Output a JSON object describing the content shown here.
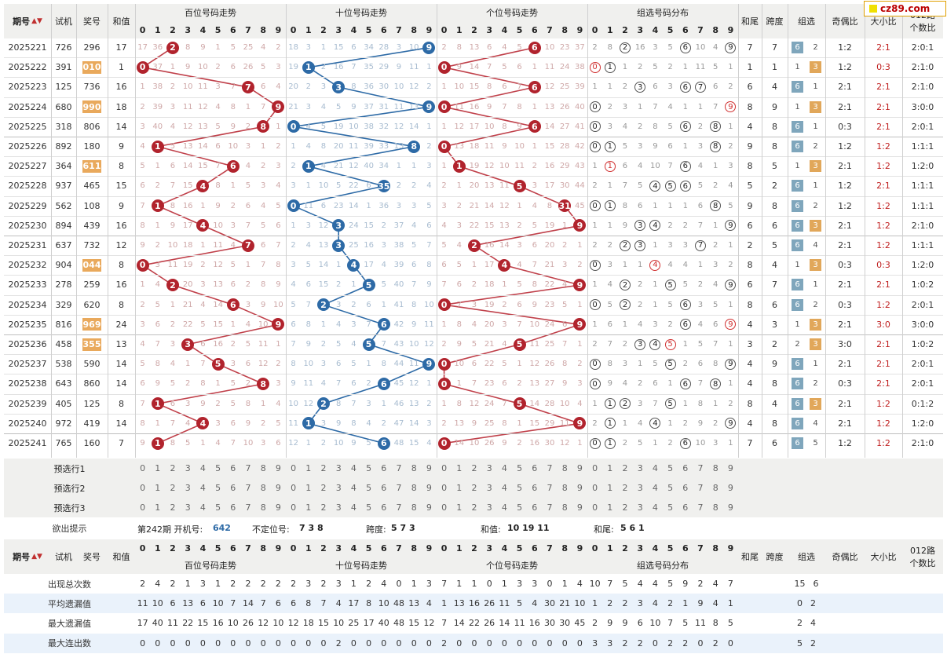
{
  "logo": "cz89.com",
  "header": {
    "period": "期号",
    "sort_icon": "sort-icon",
    "trial": "试机",
    "prize": "奖号",
    "sum": "和值",
    "hundreds": "百位号码走势",
    "tens": "十位号码走势",
    "units": "个位号码走势",
    "group": "组选号码分布",
    "tail": "和尾",
    "span": "跨度",
    "group_sel": "组选",
    "odd_even": "奇偶比",
    "big_small": "大小比",
    "road012_a": "012路",
    "road012_b": "个数比",
    "digits": [
      "0",
      "1",
      "2",
      "3",
      "4",
      "5",
      "6",
      "7",
      "8",
      "9"
    ]
  },
  "rows": [
    {
      "p": "2025221",
      "t": "726",
      "a": "296",
      "s": "17",
      "h": "17 36 2 8 9 1 5 25 4 2",
      "d": "18 3 1 15 6 34 28 3 10 9",
      "u": "2 8 13 6 4 5 6 10 23 37",
      "g": "2 8 2 16 3 5 6 10 4 9",
      "gc": [
        2,
        6,
        9
      ],
      "tail": "7",
      "span": "7",
      "g6": "6",
      "g3": "2",
      "oe": "1:2",
      "bs": "2:1",
      "road": "2:0:1",
      "hs": false
    },
    {
      "p": "2025222",
      "t": "391",
      "a": "010",
      "s": "1",
      "h": "0 37 1 9 10 2 6 26 5 3",
      "d": "19 1 2 16 7 35 29 9 11 1",
      "u": "0 9 14 7 5 6 1 11 24 38",
      "g": "0 1 1 2 5 2 1 11 5 1",
      "gc": [
        0,
        1
      ],
      "gr": [
        0
      ],
      "tail": "1",
      "span": "1",
      "g6": "1",
      "g3": "3",
      "oe": "1:2",
      "bs": "0:3",
      "road": "2:1:0",
      "hs": true
    },
    {
      "p": "2025223",
      "t": "125",
      "a": "736",
      "s": "16",
      "h": "1 38 2 10 11 3 7 7 6 4",
      "d": "20 2 3 3 8 36 30 10 12 2",
      "u": "1 10 15 8 6 7 6 12 25 39",
      "g": "1 1 2 3 6 3 6 7 6 2",
      "gc": [
        3,
        6,
        7
      ],
      "tail": "6",
      "span": "4",
      "g6": "6",
      "g3": "1",
      "oe": "2:1",
      "bs": "2:1",
      "road": "2:1:0",
      "hs": false
    },
    {
      "p": "2025224",
      "t": "680",
      "a": "990",
      "s": "18",
      "h": "2 39 3 11 12 4 8 1 7 9",
      "d": "21 3 4 5 9 37 31 11 13 9",
      "u": "0 11 16 9 7 8 1 13 26 40",
      "g": "0 2 3 1 7 4 1 1 7 9",
      "gc": [
        0,
        9
      ],
      "gr": [
        9
      ],
      "tail": "8",
      "span": "9",
      "g6": "1",
      "g3": "3",
      "oe": "2:1",
      "bs": "2:1",
      "road": "3:0:0",
      "hs": true
    },
    {
      "p": "2025225",
      "t": "318",
      "a": "806",
      "s": "14",
      "h": "3 40 4 12 13 5 9 2 8 1",
      "d": "0 4 5 19 10 38 32 12 14 1",
      "u": "1 12 17 10 8 9 6 14 27 41",
      "g": "0 3 4 2 8 5 6 2 8 1",
      "gc": [
        0,
        6,
        8
      ],
      "tail": "4",
      "span": "8",
      "g6": "6",
      "g3": "1",
      "oe": "0:3",
      "bs": "2:1",
      "road": "2:0:1",
      "hs": false
    },
    {
      "p": "2025226",
      "t": "892",
      "a": "180",
      "s": "9",
      "h": "4 1 5 13 14 6 10 3 1 2",
      "d": "1 4 8 20 11 39 33 13 8 2",
      "u": "0 13 18 11 9 10 1 15 28 42",
      "g": "0 1 5 3 9 6 1 3 8 2",
      "gc": [
        0,
        1,
        8
      ],
      "tail": "9",
      "span": "8",
      "g6": "6",
      "g3": "2",
      "oe": "1:2",
      "bs": "1:2",
      "road": "1:1:1",
      "hs": false
    },
    {
      "p": "2025227",
      "t": "364",
      "a": "611",
      "s": "8",
      "h": "5 1 6 14 15 7 6 4 2 3",
      "d": "2 1 4 21 12 40 34 1 1 3",
      "u": "1 1 19 12 10 11 2 16 29 43",
      "g": "1 1 6 4 10 7 6 4 1 3",
      "gc": [
        6
      ],
      "gr": [
        1
      ],
      "tail": "8",
      "span": "5",
      "g6": "1",
      "g3": "3",
      "oe": "2:1",
      "bs": "1:2",
      "road": "1:2:0",
      "hs": true
    },
    {
      "p": "2025228",
      "t": "937",
      "a": "465",
      "s": "15",
      "h": "6 2 7 15 4 8 1 5 3 4",
      "d": "3 1 10 5 22 6 35 2 2 4",
      "u": "2 1 20 13 11 5 3 17 30 44",
      "g": "2 1 7 5 4 5 6 5 2 4",
      "gc": [
        4,
        5,
        6
      ],
      "tail": "5",
      "span": "2",
      "g6": "6",
      "g3": "1",
      "oe": "1:2",
      "bs": "2:1",
      "road": "1:1:1",
      "hs": false
    },
    {
      "p": "2025229",
      "t": "562",
      "a": "108",
      "s": "9",
      "h": "7 1 8 16 1 9 2 6 4 5",
      "d": "0 11 6 23 14 1 36 3 3 5",
      "u": "3 2 21 14 12 1 4 8 31 45",
      "g": "0 1 8 6 1 1 1 6 8 5",
      "gc": [
        0,
        1,
        8
      ],
      "tail": "9",
      "span": "8",
      "g6": "6",
      "g3": "2",
      "oe": "1:2",
      "bs": "1:2",
      "road": "1:1:1",
      "hs": false
    },
    {
      "p": "2025230",
      "t": "894",
      "a": "439",
      "s": "16",
      "h": "8 1 9 17 4 10 3 7 5 6",
      "d": "1 3 12 3 24 15 2 37 4 6",
      "u": "4 3 22 15 13 2 5 19 1 9",
      "g": "1 1 9 3 4 2 2 7 1 9",
      "gc": [
        3,
        4,
        9
      ],
      "tail": "6",
      "span": "6",
      "g6": "6",
      "g3": "3",
      "oe": "2:1",
      "bs": "1:2",
      "road": "2:1:0",
      "hs": false
    },
    {
      "p": "2025231",
      "t": "637",
      "a": "732",
      "s": "12",
      "h": "9 2 10 18 1 11 4 7 6 7",
      "d": "2 4 13 3 25 16 3 38 5 7",
      "u": "5 4 2 16 14 3 6 20 2 1",
      "g": "2 2 2 3 1 3 3 7 2 1",
      "gc": [
        2,
        3,
        7
      ],
      "tail": "2",
      "span": "5",
      "g6": "6",
      "g3": "4",
      "oe": "2:1",
      "bs": "1:2",
      "road": "1:1:1",
      "hs": false
    },
    {
      "p": "2025232",
      "t": "904",
      "a": "044",
      "s": "8",
      "h": "0 3 11 19 2 12 5 1 7 8",
      "d": "3 5 14 1 4 17 4 39 6 8",
      "u": "6 5 1 17 4 4 7 21 3 2",
      "g": "0 3 1 1 4 4 4 1 3 2",
      "gc": [
        0
      ],
      "gr": [
        4
      ],
      "tail": "8",
      "span": "4",
      "g6": "1",
      "g3": "3",
      "oe": "0:3",
      "bs": "0:3",
      "road": "1:2:0",
      "hs": true
    },
    {
      "p": "2025233",
      "t": "278",
      "a": "259",
      "s": "16",
      "h": "1 4 2 20 3 13 6 2 8 9",
      "d": "4 6 15 2 1 5 5 40 7 9",
      "u": "7 6 2 18 1 5 8 22 4 9",
      "g": "1 4 2 2 1 5 5 2 4 9",
      "gc": [
        2,
        5,
        9
      ],
      "tail": "6",
      "span": "7",
      "g6": "6",
      "g3": "1",
      "oe": "2:1",
      "bs": "2:1",
      "road": "1:0:2",
      "hs": false
    },
    {
      "p": "2025234",
      "t": "329",
      "a": "620",
      "s": "8",
      "h": "2 5 1 21 4 14 6 3 9 10",
      "d": "5 7 2 3 2 6 1 41 8 10",
      "u": "0 7 3 19 2 6 9 23 5 1",
      "g": "0 5 2 2 1 5 6 3 5 1",
      "gc": [
        0,
        2,
        6
      ],
      "tail": "8",
      "span": "6",
      "g6": "6",
      "g3": "2",
      "oe": "0:3",
      "bs": "1:2",
      "road": "2:0:1",
      "hs": false
    },
    {
      "p": "2025235",
      "t": "816",
      "a": "969",
      "s": "24",
      "h": "3 6 2 22 5 15 1 4 10 9",
      "d": "6 8 1 4 3 7 6 42 9 11",
      "u": "1 8 4 20 3 7 10 24 6 9",
      "g": "1 6 1 4 3 2 6 4 6 9",
      "gc": [
        6
      ],
      "gr": [
        9
      ],
      "tail": "4",
      "span": "3",
      "g6": "1",
      "g3": "3",
      "oe": "2:1",
      "bs": "3:0",
      "road": "3:0:0",
      "hs": true
    },
    {
      "p": "2025236",
      "t": "458",
      "a": "355",
      "s": "13",
      "h": "4 7 3 3 6 16 2 5 11 1",
      "d": "7 9 2 5 4 5 7 43 10 12",
      "u": "2 9 5 21 4 5 11 25 7 1",
      "g": "2 7 2 3 4 5 1 5 7 1",
      "gc": [
        3,
        4
      ],
      "gr": [
        5
      ],
      "tail": "3",
      "span": "2",
      "g6": "2",
      "g3": "3",
      "oe": "3:0",
      "bs": "2:1",
      "road": "1:0:2",
      "hs": true
    },
    {
      "p": "2025237",
      "t": "538",
      "a": "590",
      "s": "14",
      "h": "5 8 4 1 7 5 3 6 12 2",
      "d": "8 10 3 6 5 1 8 44 11 9",
      "u": "0 10 6 22 5 1 12 26 8 2",
      "g": "0 8 3 1 5 5 2 6 8 9",
      "gc": [
        0,
        5,
        9
      ],
      "tail": "4",
      "span": "9",
      "g6": "6",
      "g3": "1",
      "oe": "2:1",
      "bs": "2:1",
      "road": "2:0:1",
      "hs": false
    },
    {
      "p": "2025238",
      "t": "643",
      "a": "860",
      "s": "14",
      "h": "6 9 5 2 8 1 5 2 8 3",
      "d": "9 11 4 7 6 2 6 45 12 1",
      "u": "0 1 7 23 6 2 13 27 9 3",
      "g": "0 9 4 2 6 1 6 7 8 1",
      "gc": [
        0,
        6,
        8
      ],
      "tail": "4",
      "span": "8",
      "g6": "6",
      "g3": "2",
      "oe": "0:3",
      "bs": "2:1",
      "road": "2:0:1",
      "hs": false
    },
    {
      "p": "2025239",
      "t": "405",
      "a": "125",
      "s": "8",
      "h": "7 1 6 3 9 2 5 8 1 4",
      "d": "10 12 2 8 7 3 1 46 13 2",
      "u": "1 8 12 24 7 5 14 28 10 4",
      "g": "1 1 2 3 7 5 1 8 1 2",
      "gc": [
        1,
        2,
        5
      ],
      "tail": "8",
      "span": "4",
      "g6": "6",
      "g3": "3",
      "oe": "2:1",
      "bs": "1:2",
      "road": "0:1:2",
      "hs": false
    },
    {
      "p": "2025240",
      "t": "972",
      "a": "419",
      "s": "14",
      "h": "8 1 7 4 4 3 6 9 2 5",
      "d": "11 1 3 9 8 4 2 47 14 3",
      "u": "2 13 9 25 8 1 15 29 11 9",
      "g": "2 1 1 4 4 1 2 9 2 9",
      "gc": [
        1,
        4,
        9
      ],
      "tail": "4",
      "span": "8",
      "g6": "6",
      "g3": "4",
      "oe": "2:1",
      "bs": "1:2",
      "road": "1:2:0",
      "hs": false
    },
    {
      "p": "2025241",
      "t": "765",
      "a": "160",
      "s": "7",
      "h": "9 1 8 5 1 4 7 10 3 6",
      "d": "12 1 2 10 9 5 6 48 15 4",
      "u": "0 14 10 26 9 2 16 30 12 1",
      "g": "0 1 2 5 1 2 6 10 3 1",
      "gc": [
        0,
        1,
        6
      ],
      "tail": "7",
      "span": "6",
      "g6": "6",
      "g3": "5",
      "oe": "1:2",
      "bs": "1:2",
      "road": "2:1:0",
      "hs": false
    }
  ],
  "presel": {
    "labels": [
      "预选行1",
      "预选行2",
      "预选行3"
    ]
  },
  "hint": {
    "label": "欲出提示",
    "period": "第242期 开机号:",
    "open": "642",
    "uncertain_label": "不定位号:",
    "uncertain": "7 3 8",
    "span_label": "跨度:",
    "span": "5 7 3",
    "sum_label": "和值:",
    "sum": "10 19 11",
    "tail_label": "和尾:",
    "tail": "5 6 1"
  },
  "stats": [
    {
      "label": "出现总次数",
      "h": "2 4 2 1 3 1 2 2 2 2",
      "d": "2 3 2 3 1 2 4 0 1 3",
      "u": "7 1 1 0 1 3 3 0 1 4",
      "g": "10 7 5 4 4 5 9 2 4 7",
      "g6": "15",
      "g3": "6"
    },
    {
      "label": "平均遗漏值",
      "h": "11 10 6 13 6 10 7 14 7 6",
      "d": "6 8 7 4 17 8 10 48 13 4",
      "u": "1 13 16 26 11 5 4 30 21 10",
      "g": "1 2 2 3 4 2 1 9 4 1",
      "g6": "0",
      "g3": "2"
    },
    {
      "label": "最大遗漏值",
      "h": "17 40 11 22 15 16 10 26 12 10",
      "d": "12 18 15 10 25 17 40 48 15 12",
      "u": "7 14 22 26 14 11 16 30 30 45",
      "g": "2 9 9 6 10 7 5 11 8 5",
      "g6": "2",
      "g3": "4"
    },
    {
      "label": "最大连出数",
      "h": "0 0 0 0 0 0 0 0 0 0",
      "d": "0 0 0 2 0 0 0 0 0 0",
      "u": "2 0 0 0 0 0 0 0 0 0",
      "g": "3 3 2 2 0 2 2 0 2 0",
      "g6": "5",
      "g3": "2"
    }
  ]
}
